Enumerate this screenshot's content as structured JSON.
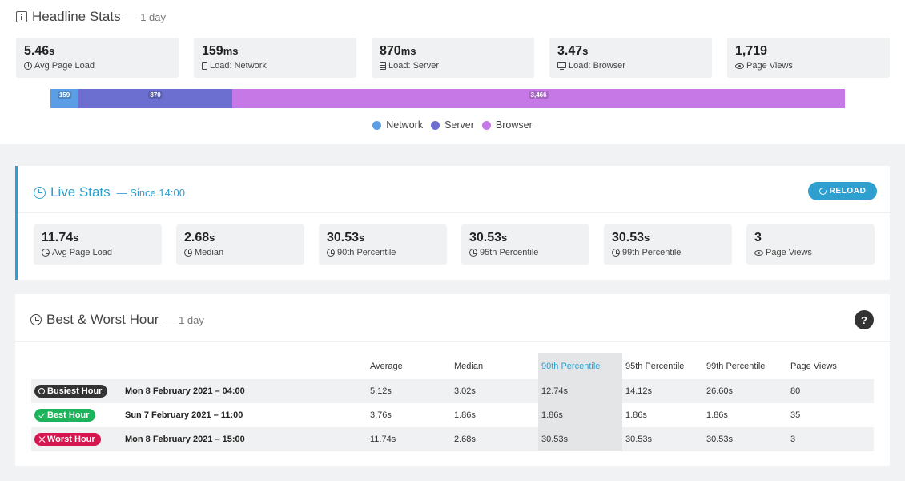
{
  "headline": {
    "title": "Headline Stats",
    "period": "— 1 day",
    "stats": [
      {
        "value": "5.46",
        "unit": "s",
        "label": "Avg Page Load",
        "icon": "clock-icon"
      },
      {
        "value": "159",
        "unit": "ms",
        "label": "Load: Network",
        "icon": "phone-icon"
      },
      {
        "value": "870",
        "unit": "ms",
        "label": "Load: Server",
        "icon": "server-icon"
      },
      {
        "value": "3.47",
        "unit": "s",
        "label": "Load: Browser",
        "icon": "monitor-icon"
      },
      {
        "value": "1,719",
        "unit": "",
        "label": "Page Views",
        "icon": "eye-icon"
      }
    ],
    "bar": [
      {
        "name": "Network",
        "label": "159",
        "value": 159,
        "color": "#5b9ee6"
      },
      {
        "name": "Server",
        "label": "870",
        "value": 870,
        "color": "#6c6fcf"
      },
      {
        "name": "Browser",
        "label": "3,466",
        "value": 3466,
        "color": "#c578e6"
      }
    ],
    "legend": [
      "Network",
      "Server",
      "Browser"
    ]
  },
  "live": {
    "title": "Live Stats",
    "since": "— Since 14:00",
    "reload_label": "RELOAD",
    "stats": [
      {
        "value": "11.74",
        "unit": "s",
        "label": "Avg Page Load"
      },
      {
        "value": "2.68",
        "unit": "s",
        "label": "Median"
      },
      {
        "value": "30.53",
        "unit": "s",
        "label": "90th Percentile"
      },
      {
        "value": "30.53",
        "unit": "s",
        "label": "95th Percentile"
      },
      {
        "value": "30.53",
        "unit": "s",
        "label": "99th Percentile"
      },
      {
        "value": "3",
        "unit": "",
        "label": "Page Views"
      }
    ]
  },
  "best_worst": {
    "title": "Best & Worst Hour",
    "period": "— 1 day",
    "help": "?",
    "headers": [
      "",
      "",
      "Average",
      "Median",
      "90th Percentile",
      "95th Percentile",
      "99th Percentile",
      "Page Views"
    ],
    "rows": [
      {
        "badge": "Busiest Hour",
        "type": "busy",
        "date": "Mon 8 February 2021 – 04:00",
        "avg": "5.12s",
        "median": "3.02s",
        "p90": "12.74s",
        "p95": "14.12s",
        "p99": "26.60s",
        "views": "80"
      },
      {
        "badge": "Best Hour",
        "type": "best",
        "date": "Sun 7 February 2021 – 11:00",
        "avg": "3.76s",
        "median": "1.86s",
        "p90": "1.86s",
        "p95": "1.86s",
        "p99": "1.86s",
        "views": "35"
      },
      {
        "badge": "Worst Hour",
        "type": "worst",
        "date": "Mon 8 February 2021 – 15:00",
        "avg": "11.74s",
        "median": "2.68s",
        "p90": "30.53s",
        "p95": "30.53s",
        "p99": "30.53s",
        "views": "3"
      }
    ]
  }
}
